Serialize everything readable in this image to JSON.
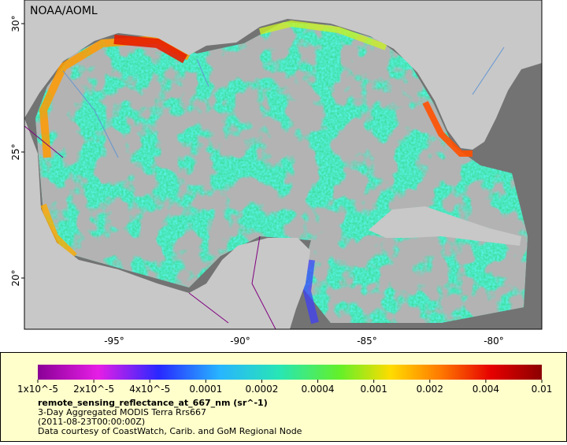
{
  "map": {
    "watermark": "NOAA/AOML",
    "lat_labels": [
      "30°",
      "25°",
      "20°"
    ],
    "lon_labels": [
      "-95°",
      "-90°",
      "-85°",
      "-80°"
    ],
    "colorbar_labels": [
      "1x10^-5",
      "2x10^-5",
      "4x10^-5",
      "0.0001",
      "0.0002",
      "0.0004",
      "0.001",
      "0.002",
      "0.004",
      "0.01"
    ],
    "caption": {
      "title": "remote_sensing_reflectance_at_667_nm (sr^-1)",
      "lines": [
        "3-Day Aggregated MODIS Terra Rrs667",
        "(2011-08-23T00:00:00Z)",
        "Data courtesy of CoastWatch, Carib. and GoM Regional Node"
      ]
    }
  }
}
